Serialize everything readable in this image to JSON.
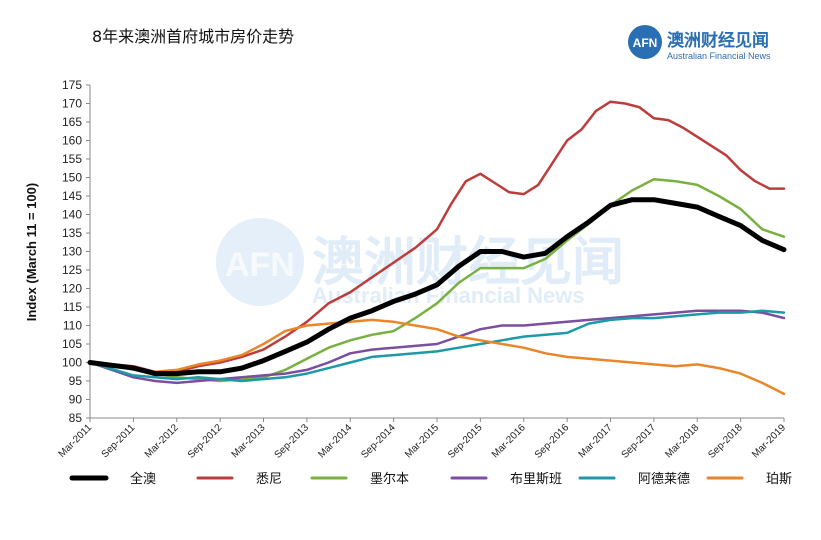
{
  "title": "8年来澳洲首府城市房价走势",
  "brand": {
    "logo_text": "AFN",
    "name_cn": "澳洲财经见闻",
    "name_en": "Australian Financial News",
    "color": "#2a6fb3"
  },
  "watermark": {
    "logo_text": "AFN",
    "name_cn": "澳洲财经见闻",
    "name_en": "Australian Financial News"
  },
  "chart_data": {
    "type": "line",
    "title": "8年来澳洲首府城市房价走势",
    "ylabel": "Index (March 11 = 100)",
    "xlabel": "",
    "ylim": [
      85,
      175
    ],
    "yticks": [
      85,
      90,
      95,
      100,
      105,
      110,
      115,
      120,
      125,
      130,
      135,
      140,
      145,
      150,
      155,
      160,
      165,
      170,
      175
    ],
    "grid": false,
    "legend_position": "bottom",
    "x_tick_labels": [
      "Mar-2011",
      "Sep-2011",
      "Mar-2012",
      "Sep-2012",
      "Mar-2013",
      "Sep-2013",
      "Mar-2014",
      "Sep-2014",
      "Mar-2015",
      "Sep-2015",
      "Mar-2016",
      "Sep-2016",
      "Mar-2017",
      "Sep-2017",
      "Mar-2018",
      "Sep-2018",
      "Mar-2019"
    ],
    "x_tick_months": [
      0,
      6,
      12,
      18,
      24,
      30,
      36,
      42,
      48,
      54,
      60,
      66,
      72,
      78,
      84,
      90,
      96
    ],
    "x_range_months": [
      0,
      96
    ],
    "series": [
      {
        "name": "全澳",
        "color": "#000000",
        "width": 5,
        "months": [
          0,
          6,
          9,
          12,
          15,
          18,
          21,
          24,
          27,
          30,
          33,
          36,
          39,
          42,
          45,
          48,
          51,
          54,
          57,
          60,
          63,
          66,
          69,
          72,
          75,
          78,
          81,
          84,
          87,
          90,
          93,
          96
        ],
        "values": [
          100,
          98.5,
          97,
          97,
          97.5,
          97.5,
          98.5,
          100.5,
          103,
          105.5,
          109,
          112,
          114,
          116.5,
          118.5,
          121,
          126,
          130,
          130,
          128.5,
          129.5,
          134,
          138,
          142.5,
          144,
          144,
          143,
          142,
          139.5,
          137,
          133,
          130.5
        ]
      },
      {
        "name": "悉尼",
        "color": "#be3c3c",
        "width": 2.5,
        "months": [
          0,
          6,
          9,
          12,
          15,
          18,
          21,
          24,
          27,
          30,
          33,
          36,
          39,
          42,
          45,
          48,
          50,
          52,
          54,
          56,
          58,
          60,
          62,
          64,
          66,
          68,
          70,
          72,
          74,
          76,
          78,
          80,
          82,
          84,
          86,
          88,
          90,
          92,
          94,
          96
        ],
        "values": [
          100,
          99,
          97.5,
          97.5,
          99,
          100,
          101.5,
          103.5,
          107,
          111,
          116,
          119,
          123,
          127,
          131,
          136,
          143,
          149,
          151,
          148.5,
          146,
          145.5,
          148,
          154,
          160,
          163,
          168,
          170.5,
          170,
          169,
          166,
          165.5,
          163.5,
          161,
          158.5,
          156,
          152,
          149,
          147,
          147
        ]
      },
      {
        "name": "墨尔本",
        "color": "#78b041",
        "width": 2.5,
        "months": [
          0,
          6,
          9,
          12,
          15,
          18,
          21,
          24,
          27,
          30,
          33,
          36,
          39,
          42,
          45,
          48,
          51,
          54,
          57,
          60,
          63,
          66,
          69,
          72,
          75,
          78,
          81,
          84,
          87,
          90,
          93,
          96
        ],
        "values": [
          100,
          98.5,
          97,
          96,
          95.5,
          95,
          95.5,
          96,
          98,
          101,
          104,
          106,
          107.5,
          108.5,
          112,
          116,
          121.5,
          125.5,
          125.5,
          125.5,
          128,
          133,
          137.5,
          142.5,
          146.5,
          149.5,
          149,
          148,
          145,
          141.5,
          136,
          134
        ]
      },
      {
        "name": "布里斯班",
        "color": "#7b4ea0",
        "width": 2.5,
        "months": [
          0,
          6,
          9,
          12,
          15,
          18,
          21,
          24,
          27,
          30,
          33,
          36,
          39,
          42,
          45,
          48,
          51,
          54,
          57,
          60,
          63,
          66,
          69,
          72,
          75,
          78,
          81,
          84,
          87,
          90,
          93,
          96
        ],
        "values": [
          100,
          96,
          95,
          94.5,
          95,
          95.5,
          96,
          96.5,
          97,
          98,
          100,
          102.5,
          103.5,
          104,
          104.5,
          105,
          107,
          109,
          110,
          110,
          110.5,
          111,
          111.5,
          112,
          112.5,
          113,
          113.5,
          114,
          114,
          114,
          113.5,
          112
        ]
      },
      {
        "name": "阿德莱德",
        "color": "#1f98a8",
        "width": 2.5,
        "months": [
          0,
          6,
          9,
          12,
          15,
          18,
          21,
          24,
          27,
          30,
          33,
          36,
          39,
          42,
          45,
          48,
          51,
          54,
          57,
          60,
          63,
          66,
          69,
          72,
          75,
          78,
          81,
          84,
          87,
          90,
          93,
          96
        ],
        "values": [
          100,
          96.5,
          96,
          95.5,
          96,
          95.5,
          95,
          95.5,
          96,
          97,
          98.5,
          100,
          101.5,
          102,
          102.5,
          103,
          104,
          105,
          106,
          107,
          107.5,
          108,
          110.5,
          111.5,
          112,
          112,
          112.5,
          113,
          113.5,
          113.5,
          114,
          113.5
        ]
      },
      {
        "name": "珀斯",
        "color": "#e9862a",
        "width": 2.5,
        "months": [
          0,
          6,
          9,
          12,
          15,
          18,
          21,
          24,
          27,
          30,
          33,
          36,
          39,
          42,
          45,
          48,
          51,
          54,
          57,
          60,
          63,
          66,
          69,
          72,
          75,
          78,
          81,
          84,
          87,
          90,
          93,
          96
        ],
        "values": [
          100,
          98.5,
          97.5,
          98,
          99.5,
          100.5,
          102,
          105,
          108.5,
          110,
          110.5,
          111,
          111.5,
          111,
          110,
          109,
          107,
          106,
          105,
          104,
          102.5,
          101.5,
          101,
          100.5,
          100,
          99.5,
          99,
          99.5,
          98.5,
          97,
          94.5,
          91.5
        ]
      }
    ]
  }
}
